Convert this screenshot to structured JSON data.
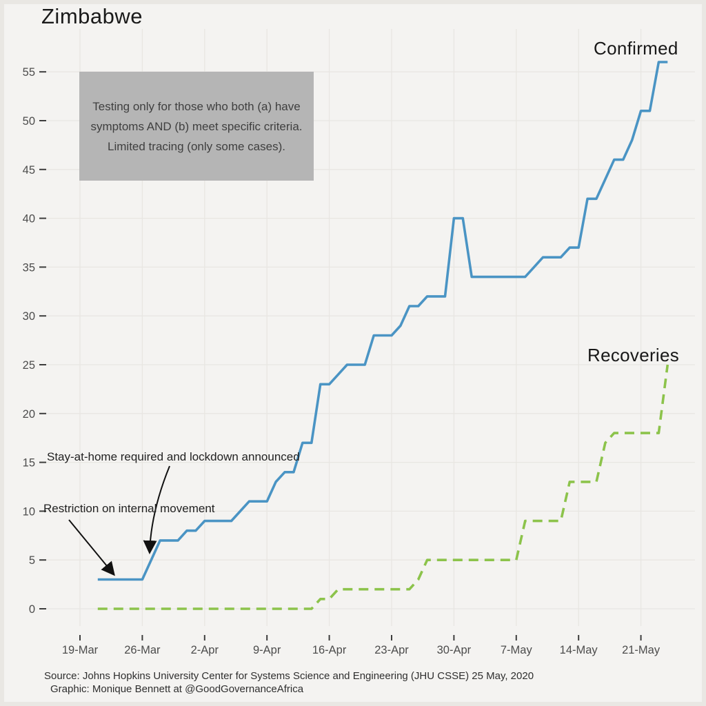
{
  "title": "Zimbabwe",
  "note_box": {
    "text": "Testing only for those who both (a) have symptoms AND (b) meet specific criteria. Limited tracing (only some cases)."
  },
  "series_labels": {
    "confirmed": "Confirmed",
    "recoveries": "Recoveries"
  },
  "callouts": [
    {
      "text": "Stay-at-home required and lockdown announced"
    },
    {
      "text": "Restriction on internal movement"
    }
  ],
  "source": {
    "line1": "Source: Johns Hopkins University Center for Systems Science and Engineering (JHU CSSE) 25 May, 2020",
    "line2": "Graphic: Monique Bennett at @GoodGovernanceAfrica"
  },
  "colors": {
    "background": "#f4f3f1",
    "grid": "#e8e6e2",
    "confirmed_line": "#4a94c4",
    "recoveries_line": "#8cc34b",
    "axis_text": "#4c4c4c",
    "arrow": "#111111",
    "note_box_bg": "#b5b5b5"
  },
  "chart_data": {
    "type": "line",
    "title": "Zimbabwe",
    "xlabel": "",
    "ylabel": "",
    "ylim": [
      0,
      57
    ],
    "grid": true,
    "legend_position": "inline-labels",
    "x_tick_labels": [
      "19-Mar",
      "26-Mar",
      "2-Apr",
      "9-Apr",
      "16-Apr",
      "23-Apr",
      "30-Apr",
      "7-May",
      "14-May",
      "21-May"
    ],
    "x_tick_days": [
      0,
      7,
      14,
      21,
      28,
      35,
      42,
      49,
      56,
      63
    ],
    "y_ticks": [
      0,
      5,
      10,
      15,
      20,
      25,
      30,
      35,
      40,
      45,
      50,
      55
    ],
    "dates": [
      "21-Mar",
      "22-Mar",
      "23-Mar",
      "24-Mar",
      "25-Mar",
      "26-Mar",
      "27-Mar",
      "28-Mar",
      "29-Mar",
      "30-Mar",
      "31-Mar",
      "1-Apr",
      "2-Apr",
      "3-Apr",
      "4-Apr",
      "5-Apr",
      "6-Apr",
      "7-Apr",
      "8-Apr",
      "9-Apr",
      "10-Apr",
      "11-Apr",
      "12-Apr",
      "13-Apr",
      "14-Apr",
      "15-Apr",
      "16-Apr",
      "17-Apr",
      "18-Apr",
      "19-Apr",
      "20-Apr",
      "21-Apr",
      "22-Apr",
      "23-Apr",
      "24-Apr",
      "25-Apr",
      "26-Apr",
      "27-Apr",
      "28-Apr",
      "29-Apr",
      "30-Apr",
      "1-May",
      "2-May",
      "3-May",
      "4-May",
      "5-May",
      "6-May",
      "7-May",
      "8-May",
      "9-May",
      "10-May",
      "11-May",
      "12-May",
      "13-May",
      "14-May",
      "15-May",
      "16-May",
      "17-May",
      "18-May",
      "19-May",
      "20-May",
      "21-May",
      "22-May",
      "23-May",
      "24-May"
    ],
    "start_day_offset": 2,
    "series": [
      {
        "name": "Confirmed",
        "style": "solid",
        "color": "#4a94c4",
        "values": [
          3,
          3,
          3,
          3,
          3,
          3,
          5,
          7,
          7,
          7,
          8,
          8,
          9,
          9,
          9,
          9,
          10,
          11,
          11,
          11,
          13,
          14,
          14,
          17,
          17,
          23,
          23,
          24,
          25,
          25,
          25,
          28,
          28,
          28,
          29,
          31,
          31,
          32,
          32,
          32,
          40,
          40,
          34,
          34,
          34,
          34,
          34,
          34,
          34,
          35,
          36,
          36,
          36,
          37,
          37,
          42,
          42,
          44,
          46,
          46,
          48,
          51,
          51,
          56,
          56
        ]
      },
      {
        "name": "Recoveries",
        "style": "dashed",
        "color": "#8cc34b",
        "values": [
          0,
          0,
          0,
          0,
          0,
          0,
          0,
          0,
          0,
          0,
          0,
          0,
          0,
          0,
          0,
          0,
          0,
          0,
          0,
          0,
          0,
          0,
          0,
          0,
          0,
          1,
          1,
          2,
          2,
          2,
          2,
          2,
          2,
          2,
          2,
          2,
          3,
          5,
          5,
          5,
          5,
          5,
          5,
          5,
          5,
          5,
          5,
          5,
          9,
          9,
          9,
          9,
          9,
          13,
          13,
          13,
          13,
          17,
          18,
          18,
          18,
          18,
          18,
          18,
          25
        ]
      }
    ],
    "annotations": [
      {
        "text": "Stay-at-home required and lockdown announced",
        "points_to": {
          "date": "27-Mar",
          "series": "Confirmed",
          "value": 5
        }
      },
      {
        "text": "Restriction on internal movement",
        "points_to": {
          "date": "24-Mar",
          "series": "Confirmed",
          "value": 3
        }
      },
      {
        "text": "Testing only for those who both (a) have symptoms AND (b) meet specific criteria. Limited tracing (only some cases).",
        "kind": "note-box"
      }
    ]
  }
}
